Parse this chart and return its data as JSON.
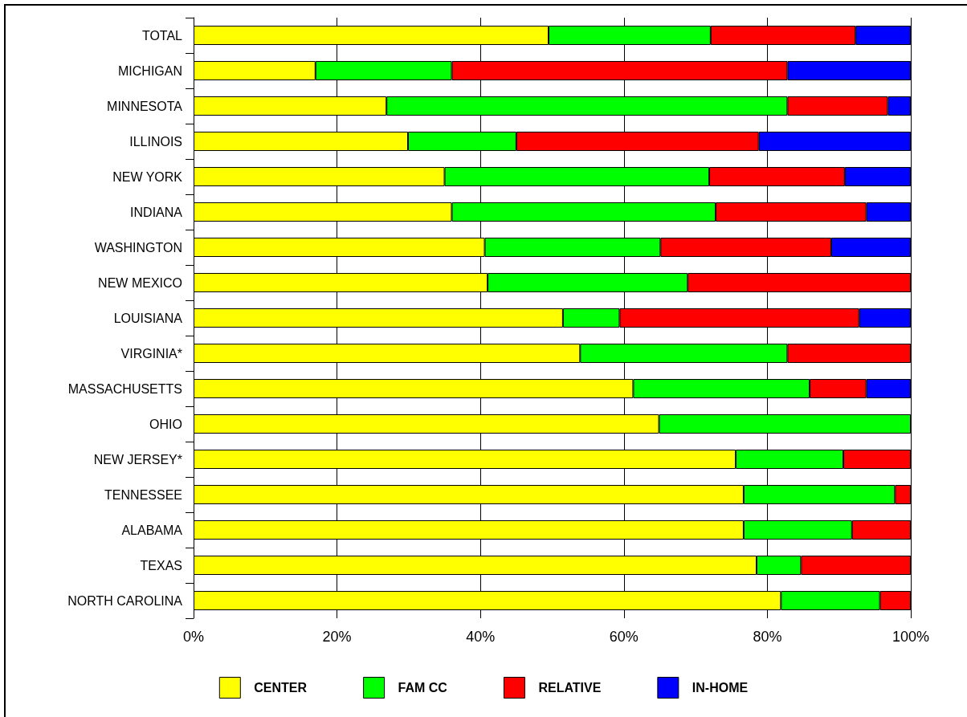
{
  "chart_data": {
    "type": "bar",
    "orientation": "horizontal",
    "stacked": true,
    "categories": [
      "TOTAL",
      "MICHIGAN",
      "MINNESOTA",
      "ILLINOIS",
      "NEW YORK",
      "INDIANA",
      "WASHINGTON",
      "NEW MEXICO",
      "LOUISIANA",
      "VIRGINIA*",
      "MASSACHUSETTS",
      "OHIO",
      "NEW JERSEY*",
      "TENNESSEE",
      "ALABAMA",
      "TEXAS",
      "NORTH CAROLINA"
    ],
    "series": [
      {
        "name": "CENTER",
        "color": "#ffff00",
        "values": [
          49.5,
          17,
          26.9,
          29.9,
          35,
          36,
          40.6,
          41,
          51.5,
          53.9,
          61.3,
          64.9,
          75.6,
          76.7,
          76.7,
          78.5,
          81.9
        ]
      },
      {
        "name": "FAM CC",
        "color": "#00ff00",
        "values": [
          22.6,
          19,
          55.9,
          15.1,
          36.9,
          36.8,
          24.5,
          27.9,
          7.9,
          28.9,
          24.6,
          35.1,
          15,
          21.1,
          15.1,
          6.2,
          13.8
        ]
      },
      {
        "name": "RELATIVE",
        "color": "#ff0000",
        "values": [
          20.2,
          46.8,
          14,
          33.8,
          18.9,
          21,
          23.8,
          31.1,
          33.4,
          17.2,
          7.9,
          null,
          9.4,
          2.2,
          8.2,
          15.3,
          4.3
        ]
      },
      {
        "name": "IN-HOME",
        "color": "#0000ff",
        "values": [
          7.7,
          17.2,
          3.2,
          21.2,
          9.2,
          6.2,
          11.1,
          null,
          7.2,
          null,
          6.2,
          null,
          null,
          null,
          null,
          null,
          null
        ]
      }
    ],
    "xlim": [
      0,
      100
    ],
    "xticks": [
      {
        "value": 0,
        "label": "0%"
      },
      {
        "value": 20,
        "label": "20%"
      },
      {
        "value": 40,
        "label": "40%"
      },
      {
        "value": 60,
        "label": "60%"
      },
      {
        "value": 80,
        "label": "80%"
      },
      {
        "value": 100,
        "label": "100%"
      }
    ],
    "grid": "x",
    "legend": "bottom"
  }
}
